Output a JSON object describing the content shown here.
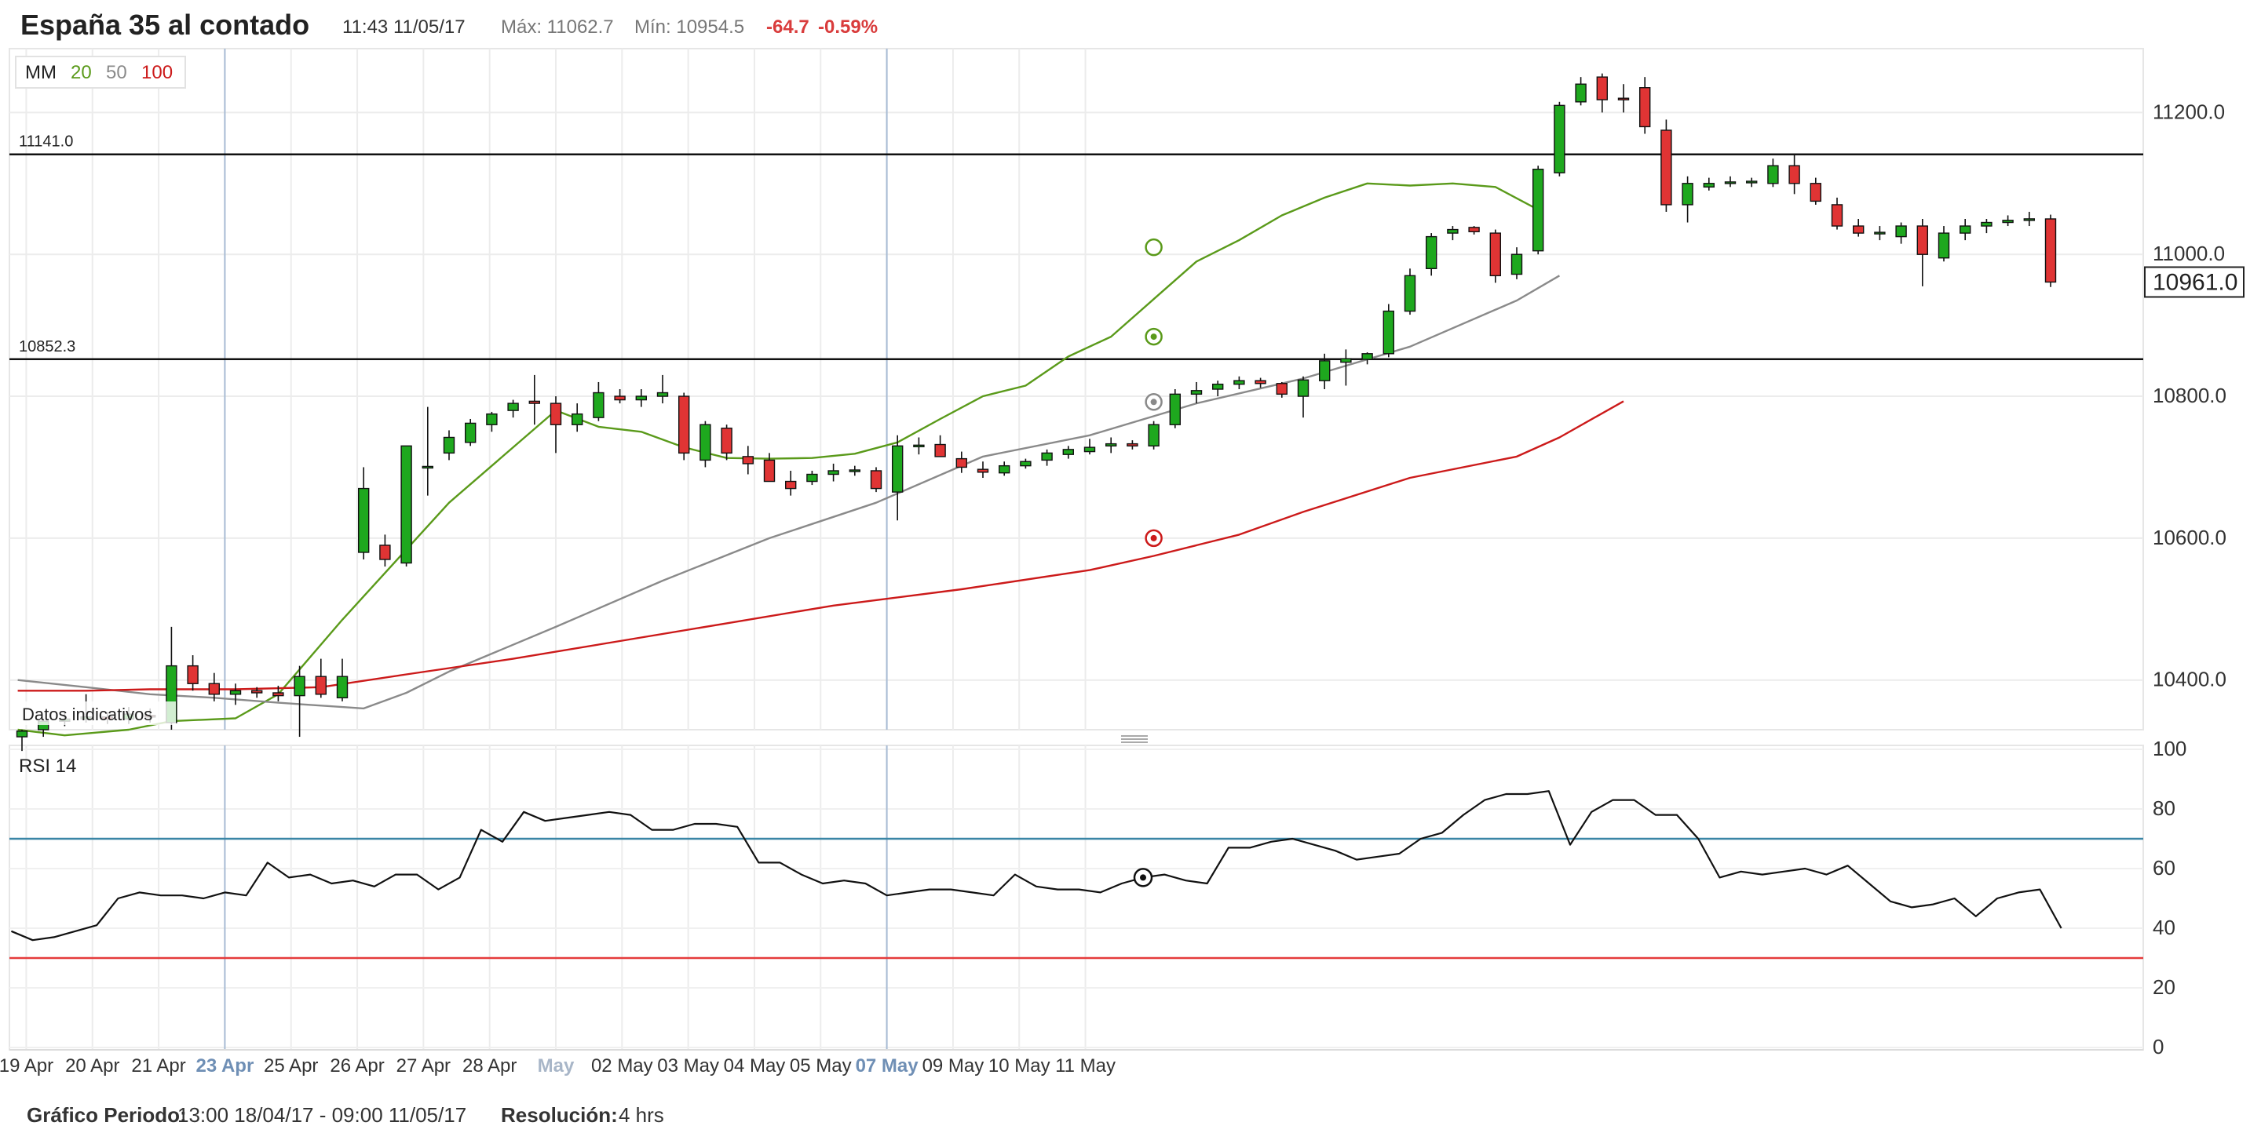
{
  "header": {
    "title": "España 35 al contado",
    "datetime": "11:43 11/05/17",
    "max_label": "Máx: 11062.7",
    "min_label": "Mín: 10954.5",
    "change": "-64.7",
    "change_pct": "-0.59%"
  },
  "legend": {
    "label": "MM",
    "ma20": "20",
    "ma50": "50",
    "ma100": "100"
  },
  "watermark": "Datos indicativos",
  "rsi_label": "RSI  14",
  "footer": {
    "period_label": "Gráfico Periodo:",
    "period_value": "13:00 18/04/17 - 09:00 11/05/17",
    "resolution_label": "Resolución:",
    "resolution_value": "4 hrs"
  },
  "colors": {
    "up": "#1ea81e",
    "down": "#e03434",
    "ma20": "#5a9a1a",
    "ma50": "#8a8a8a",
    "ma100": "#cc1a1a",
    "neg_change": "#d93c3c",
    "rsi_upper": "#3a86a6",
    "rsi_lower": "#e53b3b"
  },
  "chart_data": {
    "type": "candlestick",
    "price_axis": {
      "min": 10330,
      "max": 11290,
      "ticks": [
        10400,
        10600,
        10800,
        11000,
        11200
      ],
      "tick_labels": [
        "10400.0",
        "10600.0",
        "10800.0",
        "11000.0",
        "11200.0"
      ]
    },
    "current_price": {
      "value": 10961,
      "label": "10961.0"
    },
    "h_levels": [
      {
        "value": 11141.0,
        "label": "11141.0"
      },
      {
        "value": 10852.3,
        "label": "10852.3"
      }
    ],
    "x_labels": [
      {
        "i": 0.2,
        "text": "19 Apr",
        "highlight": false
      },
      {
        "i": 3.3,
        "text": "20 Apr",
        "highlight": false
      },
      {
        "i": 6.4,
        "text": "21 Apr",
        "highlight": false
      },
      {
        "i": 9.5,
        "text": "23 Apr",
        "highlight": true
      },
      {
        "i": 12.6,
        "text": "25 Apr",
        "highlight": false
      },
      {
        "i": 15.7,
        "text": "26 Apr",
        "highlight": false
      },
      {
        "i": 18.8,
        "text": "27 Apr",
        "highlight": false
      },
      {
        "i": 21.9,
        "text": "28 Apr",
        "highlight": false
      },
      {
        "i": 25.0,
        "text": "May",
        "highlight": "muted"
      },
      {
        "i": 28.1,
        "text": "02 May",
        "highlight": false
      },
      {
        "i": 31.2,
        "text": "03 May",
        "highlight": false
      },
      {
        "i": 34.3,
        "text": "04 May",
        "highlight": false
      },
      {
        "i": 37.4,
        "text": "05 May",
        "highlight": false
      },
      {
        "i": 40.5,
        "text": "07 May",
        "highlight": true
      },
      {
        "i": 43.6,
        "text": "09 May",
        "highlight": false
      },
      {
        "i": 46.7,
        "text": "10 May",
        "highlight": false
      },
      {
        "i": 49.8,
        "text": "11 May",
        "highlight": false
      }
    ],
    "session_lines_at": [
      9.5,
      40.5
    ],
    "candles": [
      [
        10320,
        10330,
        10300,
        10328
      ],
      [
        10330,
        10345,
        10320,
        10342
      ],
      [
        10342,
        10355,
        10335,
        10345
      ],
      [
        10345,
        10380,
        10340,
        10348
      ],
      [
        10348,
        10355,
        10338,
        10345
      ],
      [
        10345,
        10362,
        10338,
        10352
      ],
      [
        10350,
        10360,
        10340,
        10348
      ],
      [
        10340,
        10475,
        10330,
        10420
      ],
      [
        10420,
        10435,
        10385,
        10395
      ],
      [
        10395,
        10410,
        10370,
        10380
      ],
      [
        10380,
        10395,
        10365,
        10385
      ],
      [
        10385,
        10390,
        10375,
        10382
      ],
      [
        10382,
        10392,
        10370,
        10378
      ],
      [
        10378,
        10420,
        10320,
        10405
      ],
      [
        10405,
        10430,
        10375,
        10380
      ],
      [
        10375,
        10430,
        10370,
        10405
      ],
      [
        10580,
        10700,
        10570,
        10670
      ],
      [
        10590,
        10605,
        10560,
        10570
      ],
      [
        10565,
        10730,
        10560,
        10730
      ],
      [
        10700,
        10785,
        10660,
        10700
      ],
      [
        10720,
        10752,
        10710,
        10742
      ],
      [
        10735,
        10768,
        10730,
        10762
      ],
      [
        10760,
        10778,
        10750,
        10775
      ],
      [
        10780,
        10795,
        10770,
        10790
      ],
      [
        10793,
        10830,
        10760,
        10790
      ],
      [
        10790,
        10800,
        10720,
        10760
      ],
      [
        10760,
        10790,
        10750,
        10775
      ],
      [
        10770,
        10820,
        10765,
        10805
      ],
      [
        10800,
        10810,
        10790,
        10795
      ],
      [
        10795,
        10810,
        10785,
        10800
      ],
      [
        10800,
        10830,
        10790,
        10805
      ],
      [
        10800,
        10805,
        10710,
        10720
      ],
      [
        10710,
        10765,
        10700,
        10760
      ],
      [
        10755,
        10760,
        10710,
        10720
      ],
      [
        10715,
        10730,
        10690,
        10705
      ],
      [
        10710,
        10720,
        10680,
        10680
      ],
      [
        10680,
        10695,
        10660,
        10670
      ],
      [
        10680,
        10695,
        10675,
        10690
      ],
      [
        10690,
        10705,
        10680,
        10695
      ],
      [
        10695,
        10702,
        10688,
        10695
      ],
      [
        10695,
        10700,
        10665,
        10670
      ],
      [
        10665,
        10745,
        10625,
        10730
      ],
      [
        10730,
        10742,
        10718,
        10730
      ],
      [
        10732,
        10745,
        10715,
        10715
      ],
      [
        10712,
        10722,
        10692,
        10700
      ],
      [
        10697,
        10708,
        10685,
        10693
      ],
      [
        10692,
        10708,
        10688,
        10702
      ],
      [
        10702,
        10712,
        10698,
        10708
      ],
      [
        10710,
        10725,
        10702,
        10720
      ],
      [
        10718,
        10730,
        10712,
        10725
      ],
      [
        10722,
        10740,
        10718,
        10728
      ],
      [
        10730,
        10742,
        10720,
        10733
      ],
      [
        10733,
        10738,
        10725,
        10730
      ],
      [
        10730,
        10765,
        10725,
        10760
      ],
      [
        10760,
        10810,
        10755,
        10803
      ],
      [
        10803,
        10820,
        10790,
        10808
      ],
      [
        10810,
        10822,
        10800,
        10817
      ],
      [
        10817,
        10828,
        10810,
        10822
      ],
      [
        10822,
        10826,
        10812,
        10818
      ],
      [
        10818,
        10820,
        10798,
        10803
      ],
      [
        10800,
        10828,
        10770,
        10823
      ],
      [
        10822,
        10860,
        10810,
        10850
      ],
      [
        10848,
        10866,
        10815,
        10853
      ],
      [
        10852,
        10862,
        10845,
        10860
      ],
      [
        10860,
        10930,
        10855,
        10920
      ],
      [
        10920,
        10980,
        10915,
        10970
      ],
      [
        10980,
        11030,
        10970,
        11025
      ],
      [
        11030,
        11040,
        11020,
        11035
      ],
      [
        11038,
        11040,
        11028,
        11032
      ],
      [
        11030,
        11035,
        10960,
        10970
      ],
      [
        10972,
        11010,
        10965,
        11000
      ],
      [
        11005,
        11125,
        11000,
        11120
      ],
      [
        11115,
        11215,
        11110,
        11210
      ],
      [
        11215,
        11250,
        11210,
        11240
      ],
      [
        11250,
        11255,
        11200,
        11218
      ],
      [
        11220,
        11240,
        11200,
        11218
      ],
      [
        11235,
        11250,
        11170,
        11180
      ],
      [
        11175,
        11190,
        11060,
        11070
      ],
      [
        11070,
        11110,
        11045,
        11100
      ],
      [
        11095,
        11108,
        11090,
        11100
      ],
      [
        11100,
        11110,
        11095,
        11102
      ],
      [
        11102,
        11108,
        11095,
        11102
      ],
      [
        11100,
        11135,
        11095,
        11125
      ],
      [
        11125,
        11140,
        11085,
        11100
      ],
      [
        11100,
        11108,
        11070,
        11075
      ],
      [
        11070,
        11080,
        11035,
        11040
      ],
      [
        11040,
        11050,
        11025,
        11030
      ],
      [
        11030,
        11040,
        11020,
        11030
      ],
      [
        11025,
        11045,
        11015,
        11040
      ],
      [
        11040,
        11050,
        10955,
        11000
      ],
      [
        10995,
        11040,
        10990,
        11030
      ],
      [
        11030,
        11050,
        11020,
        11040
      ],
      [
        11040,
        11050,
        11030,
        11045
      ],
      [
        11045,
        11055,
        11040,
        11048
      ],
      [
        11048,
        11060,
        11040,
        11050
      ],
      [
        11050,
        11056,
        10954,
        10961
      ]
    ],
    "ma_curves": {
      "ma20": [
        [
          -0.2,
          10330
        ],
        [
          2,
          10322
        ],
        [
          5,
          10330
        ],
        [
          7,
          10342
        ],
        [
          10,
          10346
        ],
        [
          12,
          10380
        ],
        [
          15,
          10485
        ],
        [
          20,
          10650
        ],
        [
          25,
          10780
        ],
        [
          27,
          10757
        ],
        [
          29,
          10750
        ],
        [
          31,
          10728
        ],
        [
          33,
          10713
        ],
        [
          35,
          10712
        ],
        [
          37,
          10713
        ],
        [
          39,
          10719
        ],
        [
          41,
          10735
        ],
        [
          43,
          10768
        ],
        [
          45,
          10800
        ],
        [
          47,
          10815
        ],
        [
          49,
          10856
        ],
        [
          51,
          10884
        ],
        [
          53,
          10937
        ],
        [
          55,
          10990
        ],
        [
          57,
          11020
        ],
        [
          59,
          11055
        ],
        [
          61,
          11080
        ],
        [
          63,
          11100
        ],
        [
          65,
          11097
        ],
        [
          67,
          11100
        ],
        [
          69,
          11095
        ],
        [
          71,
          11063
        ]
      ],
      "ma50": [
        [
          -0.2,
          10400
        ],
        [
          3,
          10390
        ],
        [
          6,
          10380
        ],
        [
          9,
          10375
        ],
        [
          12,
          10368
        ],
        [
          15,
          10362
        ],
        [
          16,
          10360
        ],
        [
          18,
          10382
        ],
        [
          20,
          10412
        ],
        [
          25,
          10475
        ],
        [
          30,
          10540
        ],
        [
          35,
          10600
        ],
        [
          40,
          10650
        ],
        [
          45,
          10715
        ],
        [
          50,
          10745
        ],
        [
          55,
          10790
        ],
        [
          60,
          10825
        ],
        [
          65,
          10870
        ],
        [
          70,
          10935
        ],
        [
          72,
          10970
        ]
      ],
      "ma100": [
        [
          -0.2,
          10385
        ],
        [
          3,
          10385
        ],
        [
          6,
          10387
        ],
        [
          10,
          10387
        ],
        [
          14,
          10390
        ],
        [
          18,
          10408
        ],
        [
          23,
          10430
        ],
        [
          28,
          10455
        ],
        [
          33,
          10480
        ],
        [
          38,
          10505
        ],
        [
          44,
          10528
        ],
        [
          50,
          10555
        ],
        [
          53,
          10575
        ],
        [
          57,
          10605
        ],
        [
          60,
          10637
        ],
        [
          65,
          10685
        ],
        [
          70,
          10715
        ],
        [
          72,
          10742
        ],
        [
          75,
          10793
        ]
      ]
    },
    "ma_markers": [
      {
        "series": "ma20",
        "i": 53,
        "v": 10884
      },
      {
        "series": "ma50",
        "i": 53,
        "v": 10792
      },
      {
        "series": "ma100",
        "i": 53,
        "v": 10600
      }
    ],
    "price_marker": {
      "i": 53,
      "v": 11010
    },
    "rsi": {
      "min": 0,
      "max": 100,
      "upper": 70,
      "lower": 30,
      "ticks": [
        0,
        20,
        40,
        60,
        80,
        100
      ],
      "values": [
        39,
        36,
        37,
        39,
        41,
        50,
        52,
        51,
        51,
        50,
        52,
        51,
        62,
        57,
        58,
        55,
        56,
        54,
        58,
        58,
        53,
        57,
        73,
        69,
        79,
        76,
        77,
        78,
        79,
        78,
        73,
        73,
        75,
        75,
        74,
        62,
        62,
        58,
        55,
        56,
        55,
        51,
        52,
        53,
        53,
        52,
        51,
        58,
        54,
        53,
        53,
        52,
        55,
        57,
        58,
        56,
        55,
        67,
        67,
        69,
        70,
        68,
        66,
        63,
        64,
        65,
        70,
        72,
        78,
        83,
        85,
        85,
        86,
        68,
        79,
        83,
        83,
        78,
        78,
        70,
        57,
        59,
        58,
        59,
        60,
        58,
        61,
        55,
        49,
        47,
        48,
        50,
        44,
        50,
        52,
        53,
        40
      ]
    }
  }
}
